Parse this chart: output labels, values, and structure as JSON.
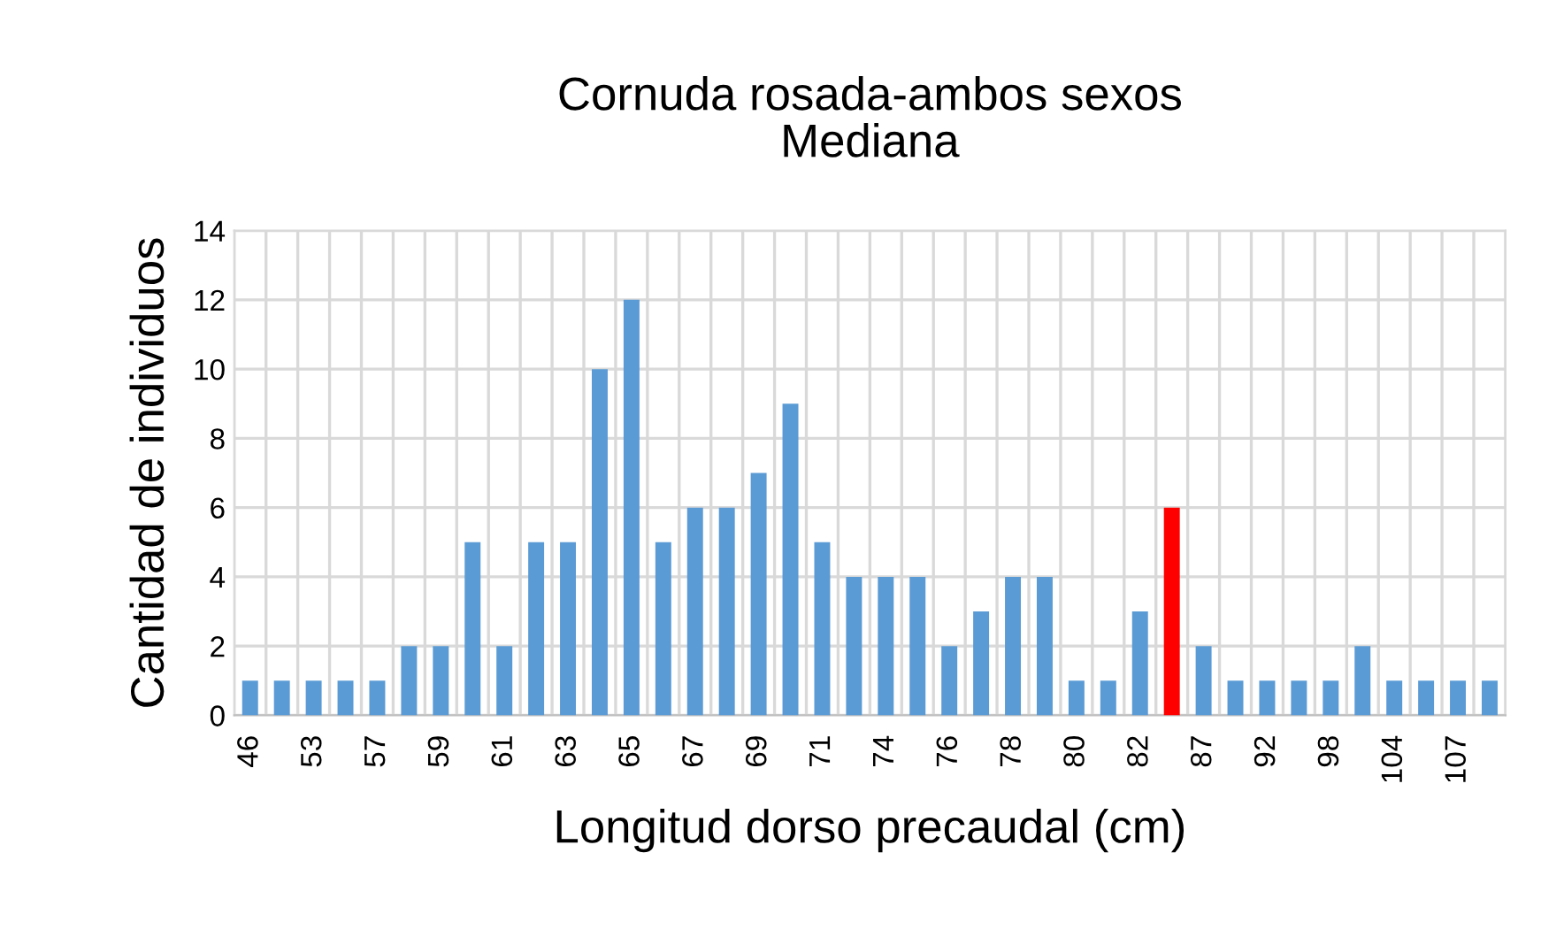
{
  "chart_data": {
    "type": "bar",
    "title": "Cornuda rosada-ambos sexos\nMediana",
    "xlabel": "Longitud dorso precaudal (cm)",
    "ylabel": "Cantidad de individuos",
    "categories": [
      "46",
      null,
      "53",
      null,
      "57",
      null,
      "59",
      null,
      "61",
      null,
      "63",
      null,
      "65",
      null,
      "67",
      null,
      "69",
      null,
      "71",
      null,
      "74",
      null,
      "76",
      null,
      "78",
      null,
      "80",
      null,
      "82",
      null,
      "87",
      null,
      "92",
      null,
      "98",
      null,
      "104",
      null,
      "107",
      null
    ],
    "values": [
      1,
      1,
      1,
      1,
      1,
      2,
      2,
      5,
      2,
      5,
      5,
      10,
      12,
      5,
      6,
      6,
      7,
      9,
      5,
      4,
      4,
      4,
      2,
      3,
      4,
      4,
      1,
      1,
      3,
      6,
      2,
      1,
      1,
      1,
      1,
      2,
      1,
      1,
      1,
      1
    ],
    "colors": [
      "#5b9bd5",
      "#5b9bd5",
      "#5b9bd5",
      "#5b9bd5",
      "#5b9bd5",
      "#5b9bd5",
      "#5b9bd5",
      "#5b9bd5",
      "#5b9bd5",
      "#5b9bd5",
      "#5b9bd5",
      "#5b9bd5",
      "#5b9bd5",
      "#5b9bd5",
      "#5b9bd5",
      "#5b9bd5",
      "#5b9bd5",
      "#5b9bd5",
      "#5b9bd5",
      "#5b9bd5",
      "#5b9bd5",
      "#5b9bd5",
      "#5b9bd5",
      "#5b9bd5",
      "#5b9bd5",
      "#5b9bd5",
      "#5b9bd5",
      "#5b9bd5",
      "#5b9bd5",
      "#ff0000",
      "#5b9bd5",
      "#5b9bd5",
      "#5b9bd5",
      "#5b9bd5",
      "#5b9bd5",
      "#5b9bd5",
      "#5b9bd5",
      "#5b9bd5",
      "#5b9bd5",
      "#5b9bd5"
    ],
    "ylim": [
      0,
      14
    ],
    "yticks": [
      0,
      2,
      4,
      6,
      8,
      10,
      12,
      14
    ],
    "grid": true
  }
}
